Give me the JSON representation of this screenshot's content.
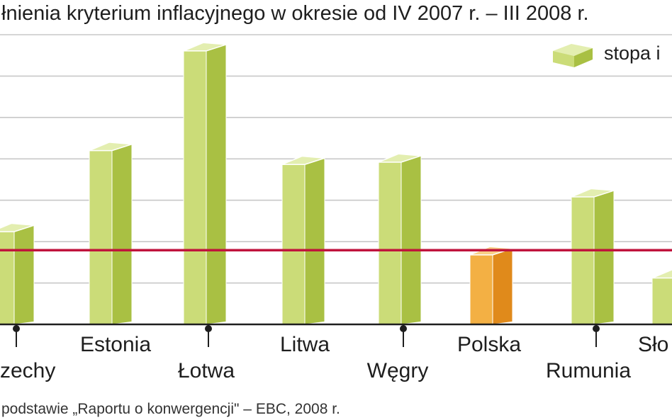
{
  "chart_data": {
    "type": "bar",
    "title": "łnienia kryterium inflacyjnego w okresie od IV 2007 r. – III 2008 r.",
    "legend": {
      "label": "stopa i",
      "position": "top-right"
    },
    "categories": [
      "zechy",
      "Estonia",
      "Łotwa",
      "Litwa",
      "Węgry",
      "Polska",
      "Rumunia",
      "Sło"
    ],
    "values": [
      4.0,
      7.5,
      11.8,
      6.9,
      7.0,
      3.0,
      5.5,
      2.0
    ],
    "highlight_category": "Polska",
    "reference_line": {
      "value": 3.2
    },
    "ylim": [
      0,
      12.5
    ],
    "grid": true,
    "colors": {
      "bar_front": "#cbdc78",
      "bar_side": "#a9c043",
      "bar_top": "#e3eeb0",
      "highlight_front": "#f3b044",
      "highlight_side": "#e08a1b",
      "highlight_top": "#f8cf86",
      "reference_line": "#c0143c",
      "grid": "#c8c8c8",
      "axis": "#1e1e1e"
    }
  },
  "source": "podstawie „Raportu o konwergencji\" – EBC, 2008 r."
}
